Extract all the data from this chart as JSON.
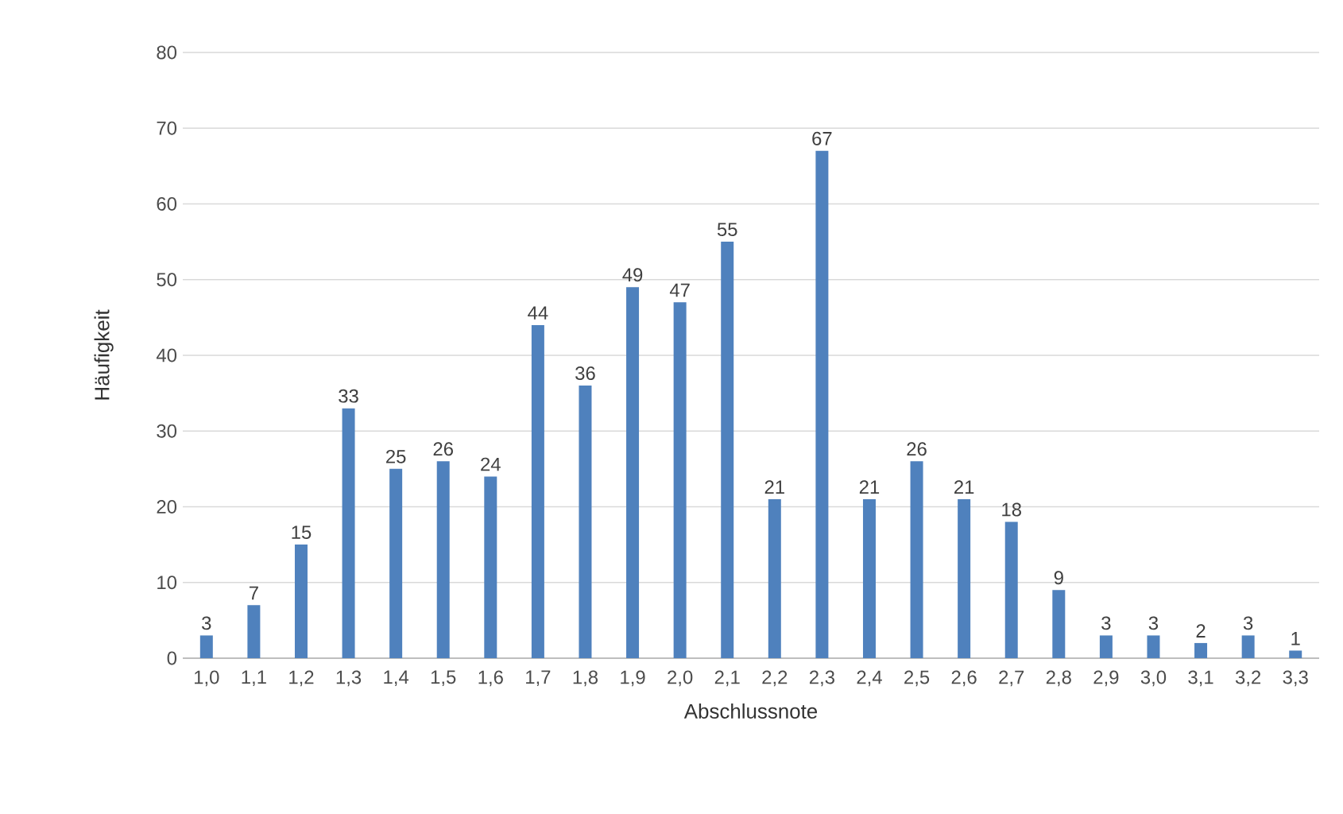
{
  "chart_data": {
    "type": "bar",
    "xlabel": "Abschlussnote",
    "ylabel": "Häufigkeit",
    "categories": [
      "1,0",
      "1,1",
      "1,2",
      "1,3",
      "1,4",
      "1,5",
      "1,6",
      "1,7",
      "1,8",
      "1,9",
      "2,0",
      "2,1",
      "2,2",
      "2,3",
      "2,4",
      "2,5",
      "2,6",
      "2,7",
      "2,8",
      "2,9",
      "3,0",
      "3,1",
      "3,2",
      "3,3"
    ],
    "values": [
      3,
      7,
      15,
      33,
      25,
      26,
      24,
      44,
      36,
      49,
      47,
      55,
      21,
      67,
      21,
      26,
      21,
      18,
      9,
      3,
      3,
      2,
      3,
      1
    ],
    "color": "#4f81bd",
    "ylim": [
      0,
      80
    ],
    "yticks": [
      0,
      10,
      20,
      30,
      40,
      50,
      60,
      70,
      80
    ],
    "grid": "y",
    "data_labels": true
  }
}
